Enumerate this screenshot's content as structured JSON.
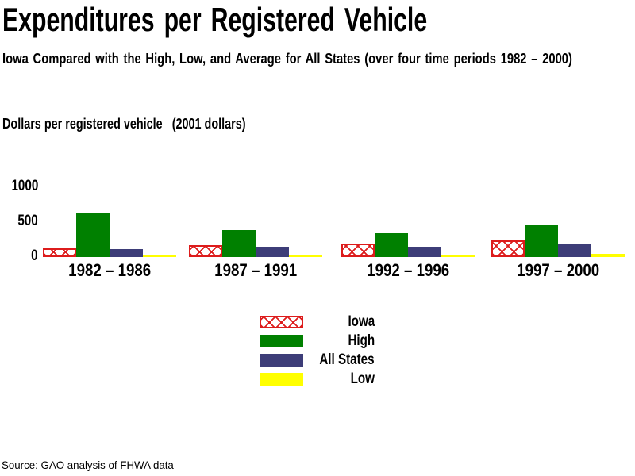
{
  "page": {
    "title": "Expenditures per Registered Vehicle",
    "subtitle": "Iowa Compared with the High, Low, and Average for All States (over four time periods 1982 – 2000)",
    "axis_title": "Dollars per registered vehicle   (2001 dollars)",
    "source": "Source: GAO analysis of FHWA data"
  },
  "colors": {
    "iowa": "#dd1c1c",
    "high": "#008000",
    "all_states": "#3d3d78",
    "low": "#ffff00"
  },
  "legend": [
    {
      "key": "iowa",
      "label": "Iowa"
    },
    {
      "key": "high",
      "label": "High"
    },
    {
      "key": "all_states",
      "label": "All States"
    },
    {
      "key": "low",
      "label": "Low"
    }
  ],
  "chart_data": {
    "type": "bar",
    "title": "Expenditures per Registered Vehicle",
    "subtitle": "Iowa Compared with the High, Low, and Average for All States (over four time periods 1982–2000)",
    "ylabel": "Dollars per registered vehicle (2001 dollars)",
    "categories": [
      "1982 – 1986",
      "1987 – 1991",
      "1992 – 1996",
      "1997 – 2000"
    ],
    "series": [
      {
        "key": "iowa",
        "name": "Iowa",
        "values": [
          125,
          170,
          190,
          240
        ]
      },
      {
        "key": "high",
        "name": "High",
        "values": [
          630,
          385,
          340,
          455
        ]
      },
      {
        "key": "all_states",
        "name": "All States",
        "values": [
          115,
          150,
          145,
          195
        ]
      },
      {
        "key": "low",
        "name": "Low",
        "values": [
          35,
          35,
          25,
          45
        ]
      }
    ],
    "ylim": [
      0,
      1000
    ],
    "y_ticks": [
      0,
      500,
      1000
    ],
    "grid": false,
    "legend_position": "bottom",
    "source": "Source: GAO analysis of FHWA data"
  }
}
